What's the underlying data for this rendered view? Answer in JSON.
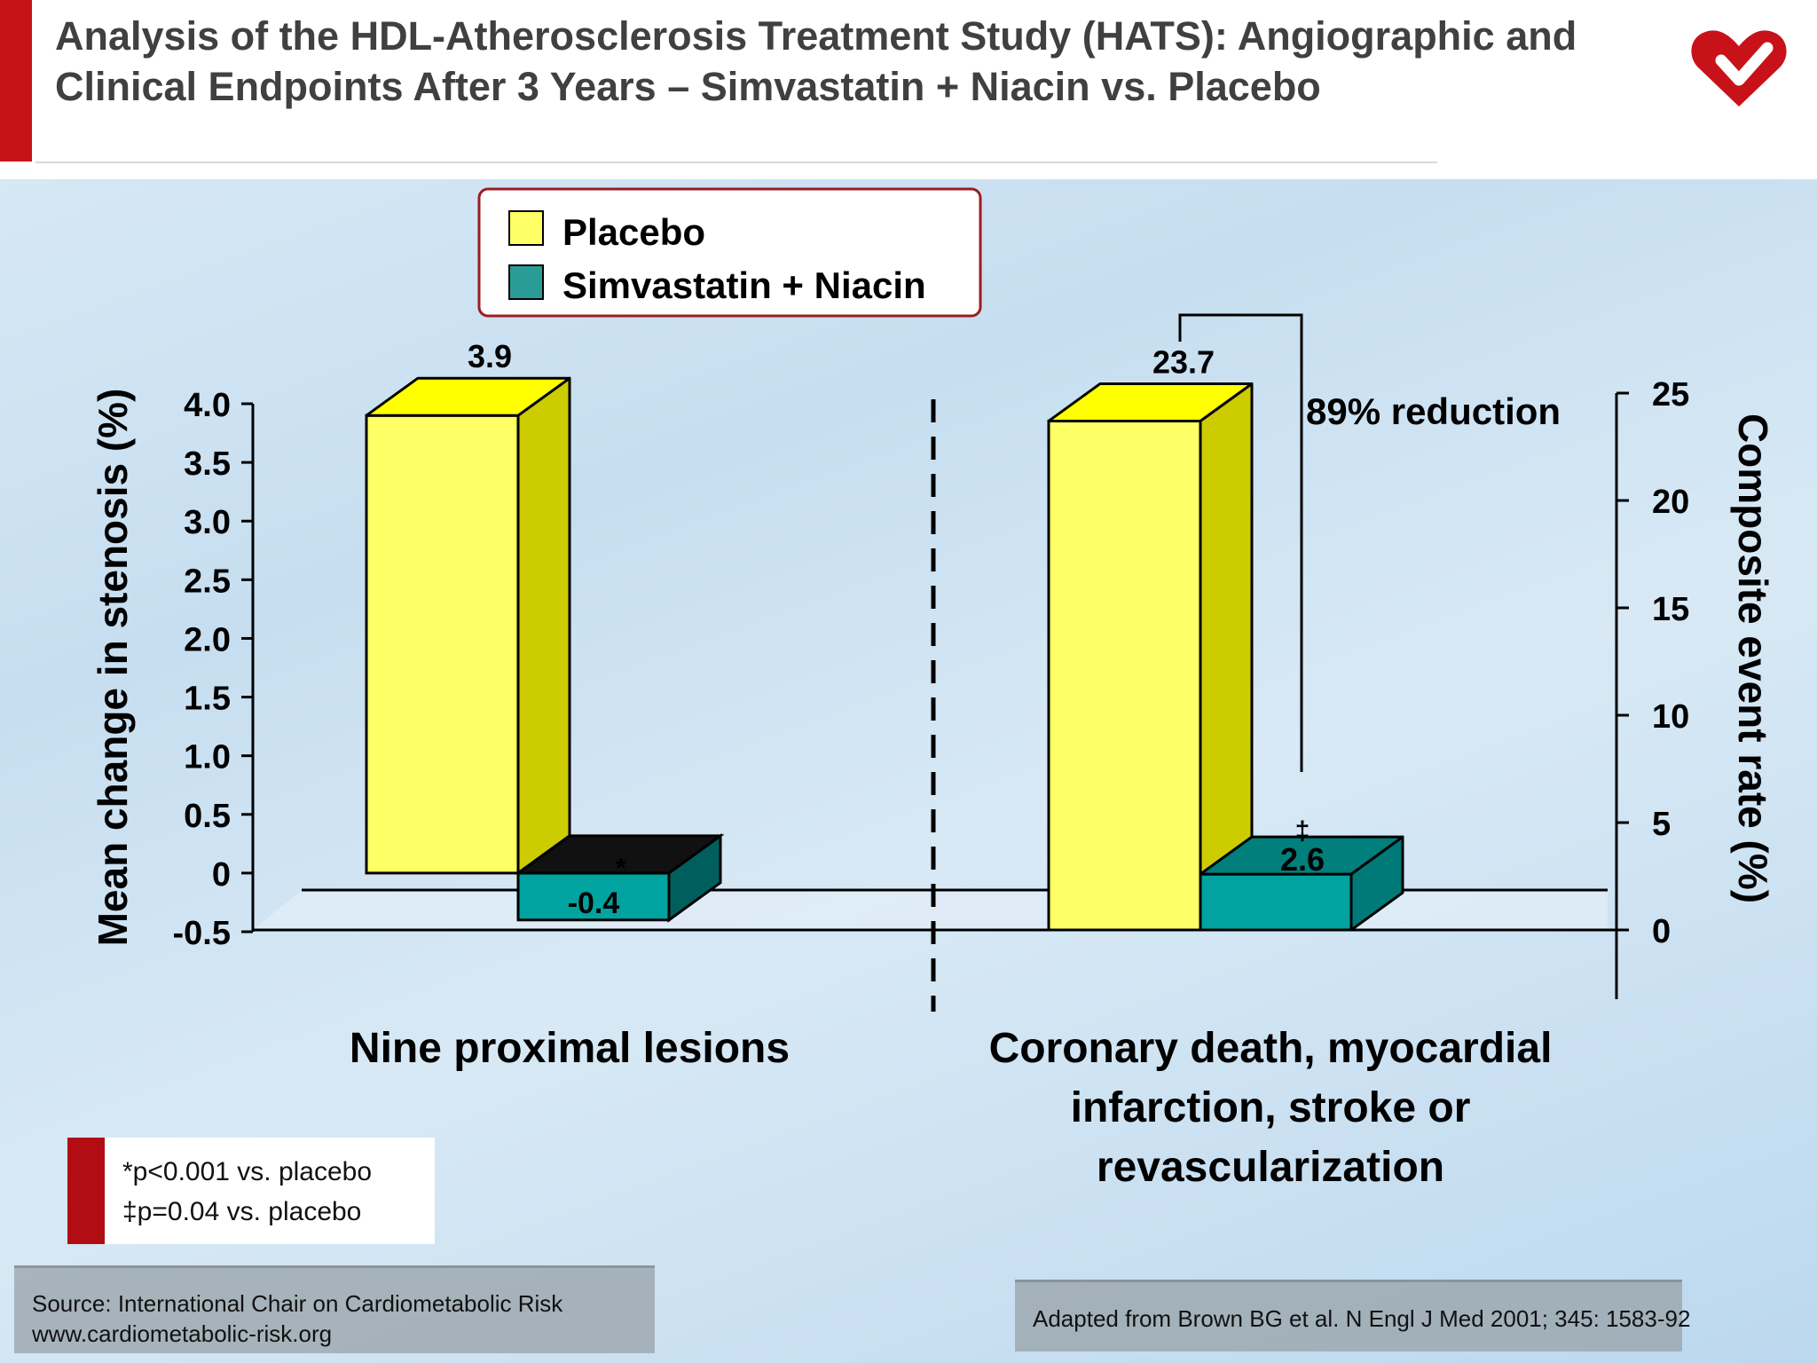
{
  "title": "Analysis of the HDL-Atherosclerosis Treatment Study (HATS): Angiographic and Clinical Endpoints After 3 Years – Simvastatin + Niacin vs. Placebo",
  "colors": {
    "placebo": "#ffff66",
    "placebo_side": "#cccc00",
    "placebo_top": "#ffff00",
    "treatment": "#00a3a0",
    "treatment_side": "#007a78",
    "treatment_top": "#007f7c",
    "accent_red": "#c8121a"
  },
  "chart_data": {
    "type": "bar",
    "legend": [
      "Placebo",
      "Simvastatin + Niacin"
    ],
    "legend_position": "top-center",
    "categories": [
      "Nine proximal lesions",
      "Coronary death, myocardial infarction, stroke or revascularization"
    ],
    "category_lines": [
      [
        "Nine proximal lesions"
      ],
      [
        "Coronary death, myocardial",
        "infarction, stroke or",
        "revascularization"
      ]
    ],
    "panels": [
      {
        "category": "Nine proximal lesions",
        "axis": "left",
        "ylabel": "Mean change in stenosis (%)",
        "ylim": [
          -0.5,
          4.0
        ],
        "yticks": [
          "4.0",
          "3.5",
          "3.0",
          "2.5",
          "2.0",
          "1.5",
          "1.0",
          "0.5",
          "0",
          "-0.5"
        ],
        "series": [
          {
            "name": "Placebo",
            "value": 3.9,
            "label": "3.9"
          },
          {
            "name": "Simvastatin + Niacin",
            "value": -0.4,
            "label": "-0.4",
            "marker": "*"
          }
        ]
      },
      {
        "category": "Coronary death, myocardial infarction, stroke or revascularization",
        "axis": "right",
        "ylabel": "Composite event rate (%)",
        "ylim": [
          0,
          25
        ],
        "yticks": [
          "25",
          "20",
          "15",
          "10",
          "5",
          "0"
        ],
        "series": [
          {
            "name": "Placebo",
            "value": 23.7,
            "label": "23.7"
          },
          {
            "name": "Simvastatin + Niacin",
            "value": 2.6,
            "label": "2.6",
            "marker": "‡"
          }
        ],
        "annotation": "89% reduction"
      }
    ]
  },
  "footnotes": [
    "*p<0.001 vs. placebo",
    "‡p=0.04 vs. placebo"
  ],
  "source_lines": [
    "Source: International Chair on Cardiometabolic Risk",
    "www.cardiometabolic-risk.org"
  ],
  "citation": "Adapted from Brown BG et al. N Engl J Med 2001; 345: 1583-92"
}
